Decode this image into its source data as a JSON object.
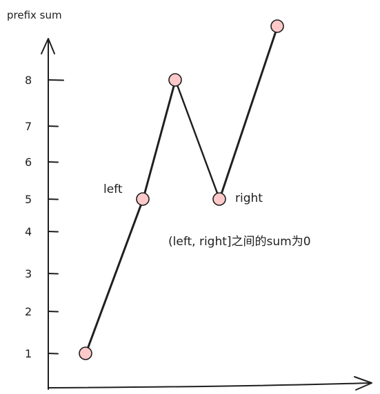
{
  "chart_data": {
    "type": "line",
    "ylabel": "prefix sum",
    "y_ticks": [
      "1",
      "2",
      "3",
      "4",
      "5",
      "6",
      "7",
      "8"
    ],
    "points": [
      {
        "x": 1,
        "y": 1
      },
      {
        "x": 2,
        "y": 5
      },
      {
        "x": 3,
        "y": 8
      },
      {
        "x": 4,
        "y": 5
      },
      {
        "x": 5,
        "y": 9
      }
    ],
    "annotations": {
      "left_label": "left",
      "right_label": "right",
      "note": "(left, right]之间的sum为0"
    },
    "colors": {
      "line": "#1e1e1e",
      "point_fill": "#ffc9c9",
      "point_stroke": "#1e1e1e"
    }
  }
}
